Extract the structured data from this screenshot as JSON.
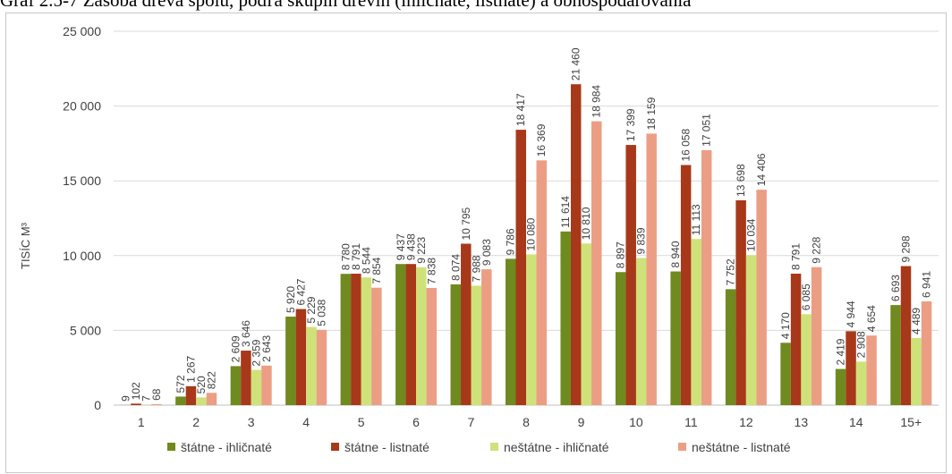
{
  "caption": "Graf 2.5-7 Zásoba dreva spolu, podľa skupín drevín (ihličnaté, listnaté) a obhospodarovania",
  "chart_data": {
    "type": "bar",
    "ylabel": "TISÍC M³",
    "ylim": [
      0,
      25000
    ],
    "yticks": [
      0,
      5000,
      10000,
      15000,
      20000,
      25000
    ],
    "ytick_labels": [
      "0",
      "5 000",
      "10 000",
      "15 000",
      "20 000",
      "25 000"
    ],
    "grid": true,
    "legend_position": "bottom",
    "categories": [
      "1",
      "2",
      "3",
      "4",
      "5",
      "6",
      "7",
      "8",
      "9",
      "10",
      "11",
      "12",
      "13",
      "14",
      "15+"
    ],
    "series": [
      {
        "name": "štátne - ihličnaté",
        "color": "#6f8a1e",
        "values": [
          9,
          572,
          2609,
          5920,
          8780,
          9437,
          8074,
          9786,
          11614,
          8897,
          8940,
          7752,
          4170,
          2419,
          6693
        ],
        "labels": [
          "9",
          "572",
          "2 609",
          "5 920",
          "8 780",
          "9 437",
          "8 074",
          "9 786",
          "11 614",
          "8 897",
          "8 940",
          "7 752",
          "4 170",
          "2 419",
          "6 693"
        ]
      },
      {
        "name": "štátne - listnaté",
        "color": "#a8381a",
        "values": [
          102,
          1267,
          3646,
          6427,
          8791,
          9438,
          10795,
          18417,
          21460,
          17399,
          16058,
          13698,
          8791,
          4944,
          9298
        ],
        "labels": [
          "102",
          "1 267",
          "3 646",
          "6 427",
          "8 791",
          "9 438",
          "10 795",
          "18 417",
          "21 460",
          "17 399",
          "16 058",
          "13 698",
          "8 791",
          "4 944",
          "9 298"
        ]
      },
      {
        "name": "neštátne - ihličnaté",
        "color": "#cfe27a",
        "values": [
          7,
          520,
          2359,
          5229,
          8544,
          9223,
          7988,
          10080,
          10810,
          9839,
          11113,
          10034,
          6085,
          2908,
          4489
        ],
        "labels": [
          "7",
          "520",
          "2 359",
          "5 229",
          "8 544",
          "9 223",
          "7 988",
          "10 080",
          "10 810",
          "9 839",
          "11 113",
          "10 034",
          "6 085",
          "2 908",
          "4 489"
        ]
      },
      {
        "name": "neštátne - listnaté",
        "color": "#ec9e84",
        "values": [
          68,
          822,
          2643,
          5038,
          7854,
          7838,
          9083,
          16369,
          18984,
          18159,
          17051,
          14406,
          9228,
          4654,
          6941
        ],
        "labels": [
          "68",
          "822",
          "2 643",
          "5 038",
          "7 854",
          "7 838",
          "9 083",
          "16 369",
          "18 984",
          "18 159",
          "17 051",
          "14 406",
          "9 228",
          "4 654",
          "6 941"
        ]
      }
    ]
  }
}
